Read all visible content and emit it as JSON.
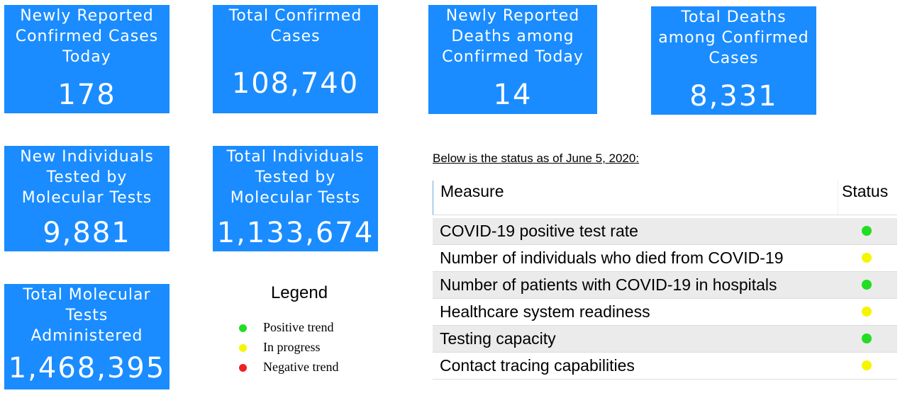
{
  "cards": [
    {
      "title": "Newly Reported Confirmed Cases Today",
      "value": "178"
    },
    {
      "title": "Total Confirmed Cases",
      "value": "108,740"
    },
    {
      "title": "Newly Reported Deaths among Confirmed Today",
      "value": "14"
    },
    {
      "title": "Total Deaths among Confirmed Cases",
      "value": "8,331"
    },
    {
      "title": "New Individuals Tested by Molecular Tests",
      "value": "9,881"
    },
    {
      "title": "Total Individuals Tested by Molecular Tests",
      "value": "1,133,674"
    },
    {
      "title": "Total Molecular Tests Administered",
      "value": "1,468,395"
    }
  ],
  "status_note": "Below is the status as of June 5, 2020:",
  "table": {
    "headers": [
      "Measure",
      "Status"
    ],
    "rows": [
      {
        "measure": "COVID-19 positive test rate",
        "color": "#22dd22"
      },
      {
        "measure": "Number of individuals who died from COVID-19",
        "color": "#f5f500"
      },
      {
        "measure": "Number of patients with COVID-19 in hospitals",
        "color": "#22dd22"
      },
      {
        "measure": "Healthcare system readiness",
        "color": "#f5f500"
      },
      {
        "measure": "Testing capacity",
        "color": "#22dd22"
      },
      {
        "measure": "Contact tracing capabilities",
        "color": "#f5f500"
      }
    ]
  },
  "legend": {
    "title": "Legend",
    "items": [
      {
        "label": "Positive trend",
        "color": "#22dd22"
      },
      {
        "label": "In progress",
        "color": "#f5f500"
      },
      {
        "label": "Negative trend",
        "color": "#ee2222"
      }
    ]
  }
}
